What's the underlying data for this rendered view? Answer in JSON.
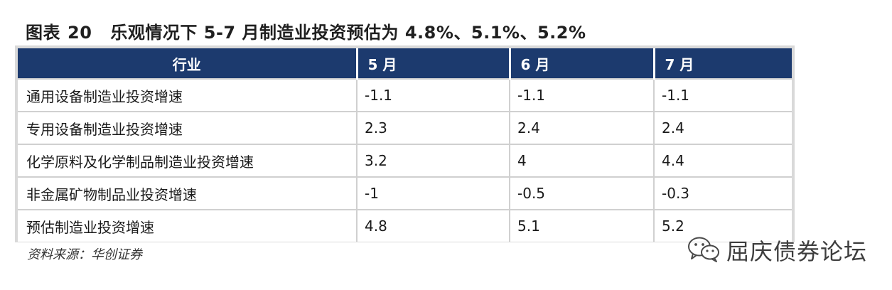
{
  "figure": {
    "label": "图表",
    "number": "20",
    "title": "乐观情况下 5-7 月制造业投资预估为 4.8%、5.1%、5.2%"
  },
  "table": {
    "headers": [
      "行业",
      "5 月",
      "6 月",
      "7 月"
    ],
    "rows": [
      [
        "通用设备制造业投资增速",
        "-1.1",
        "-1.1",
        "-1.1"
      ],
      [
        "专用设备制造业投资增速",
        "2.3",
        "2.4",
        "2.4"
      ],
      [
        "化学原料及化学制品制造业投资增速",
        "3.2",
        "4",
        "4.4"
      ],
      [
        "非金属矿物制品业投资增速",
        "-1",
        "-0.5",
        "-0.3"
      ],
      [
        "预估制造业投资增速",
        "4.8",
        "5.1",
        "5.2"
      ]
    ],
    "header_bg": "#1c3a6e",
    "header_text_color": "#ffffff"
  },
  "source": "资料来源：华创证券",
  "watermark": {
    "icon": "wechat-icon",
    "text": "屈庆债券论坛"
  }
}
